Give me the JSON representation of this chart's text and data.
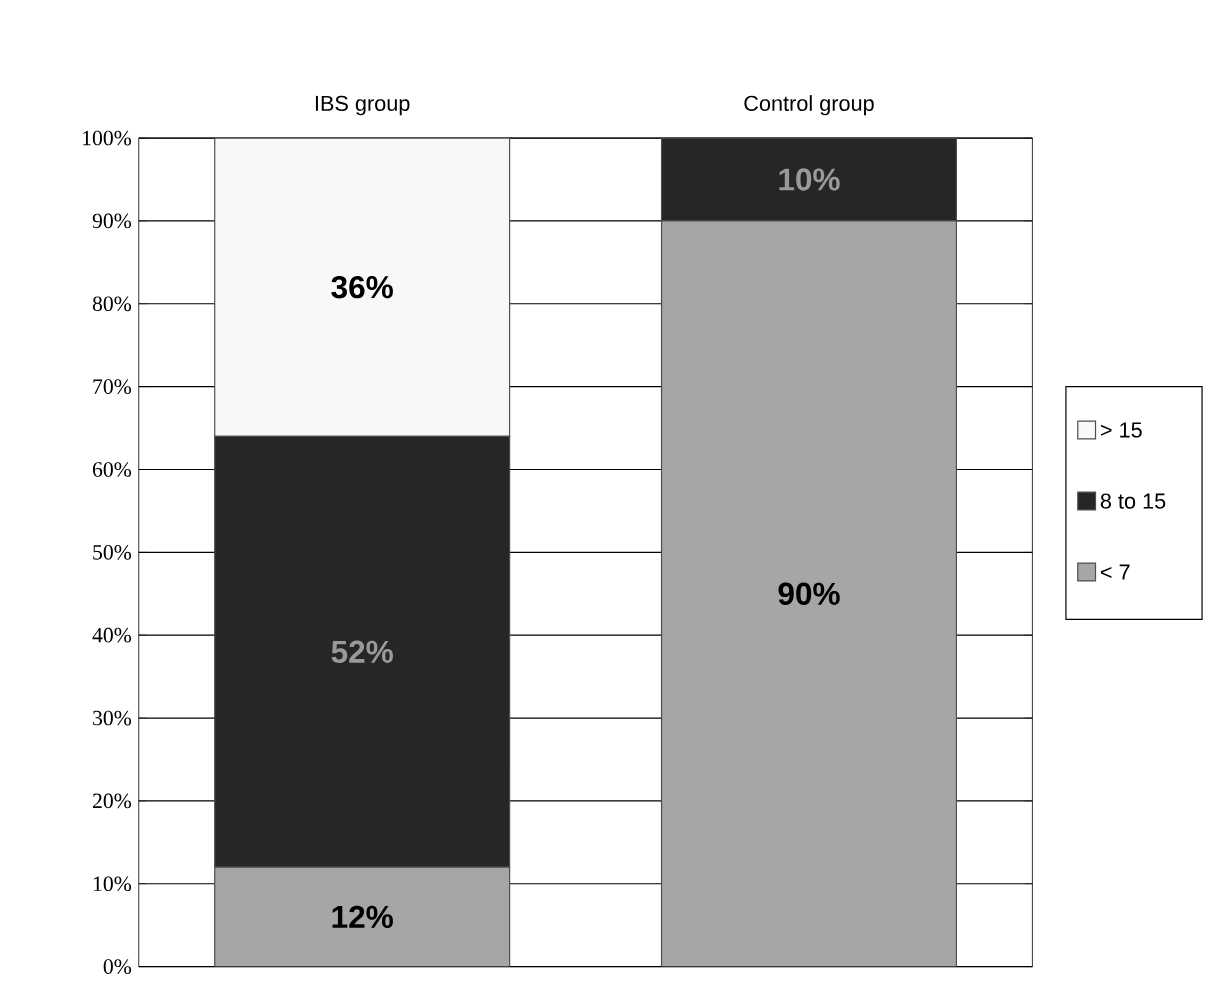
{
  "chart_data": {
    "type": "bar",
    "stacked": true,
    "categories": [
      "IBS group",
      "Control group"
    ],
    "series": [
      {
        "name": "< 7",
        "color": "#a6a6a6",
        "values": [
          12,
          90
        ],
        "value_labels": [
          "12%",
          "90%"
        ]
      },
      {
        "name": "8 to 15",
        "color": "#262626",
        "values": [
          52,
          10
        ],
        "value_labels": [
          "52%",
          "10%"
        ]
      },
      {
        "name": "> 15",
        "color": "#f8f8f8",
        "values": [
          36,
          null
        ],
        "value_labels": [
          "36%",
          null
        ]
      }
    ],
    "ylim": [
      0,
      100
    ],
    "yticks": [
      {
        "value": 0,
        "label": "0%"
      },
      {
        "value": 10,
        "label": "10%"
      },
      {
        "value": 20,
        "label": "20%"
      },
      {
        "value": 30,
        "label": "30%"
      },
      {
        "value": 40,
        "label": "40%"
      },
      {
        "value": 50,
        "label": "50%"
      },
      {
        "value": 60,
        "label": "60%"
      },
      {
        "value": 70,
        "label": "70%"
      },
      {
        "value": 80,
        "label": "80%"
      },
      {
        "value": 90,
        "label": "90%"
      },
      {
        "value": 100,
        "label": "100%"
      }
    ],
    "grid": "y",
    "legend": "right"
  }
}
